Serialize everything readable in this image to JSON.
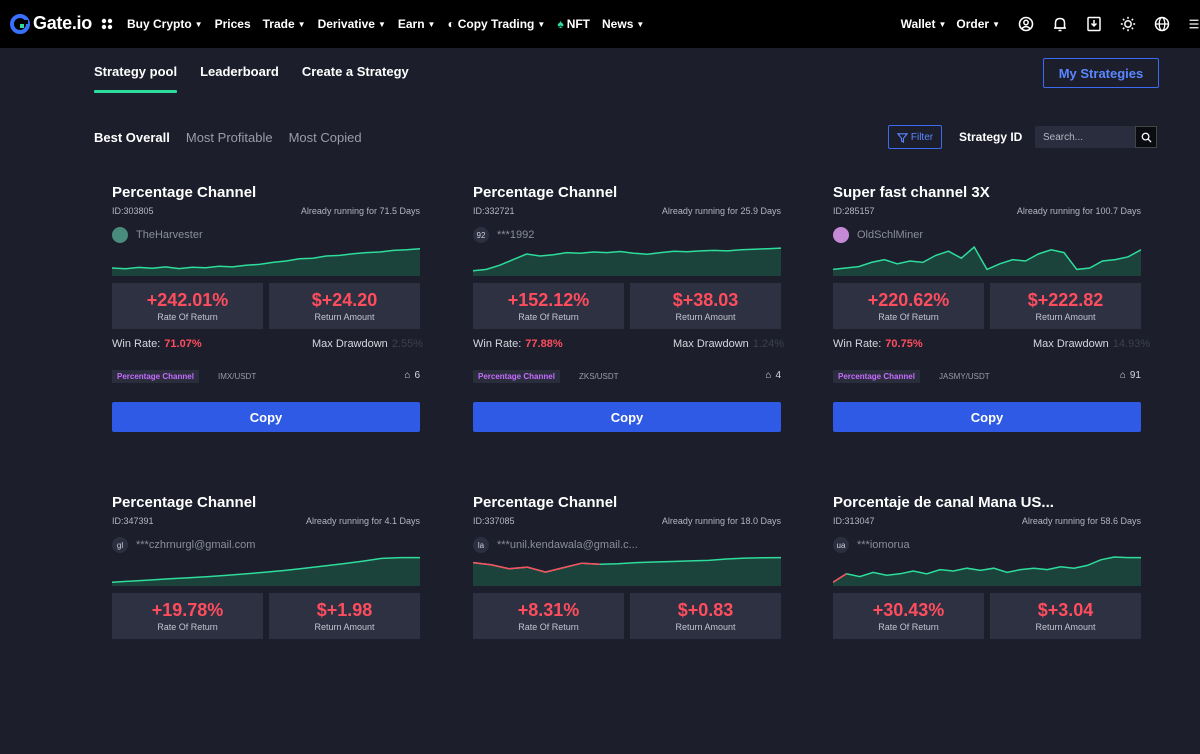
{
  "brand": {
    "name": "Gate.io"
  },
  "nav": {
    "items": [
      "Buy Crypto",
      "Prices",
      "Trade",
      "Derivative",
      "Earn",
      "Copy Trading",
      "NFT",
      "News"
    ],
    "wallet": "Wallet",
    "order": "Order"
  },
  "subnav": {
    "tabs": [
      "Strategy pool",
      "Leaderboard",
      "Create a Strategy"
    ],
    "my_strategies": "My Strategies"
  },
  "sort": {
    "tabs": [
      "Best Overall",
      "Most Profitable",
      "Most Copied"
    ]
  },
  "filter": {
    "label": "Filter",
    "strategy_id_label": "Strategy ID",
    "search_placeholder": "Search..."
  },
  "labels": {
    "rate": "Rate Of Return",
    "amount": "Return Amount",
    "win_rate": "Win Rate:",
    "max_dd": "Max Drawdown",
    "copy": "Copy"
  },
  "colors": {
    "accent": "#2f5ae5",
    "positive_line": "#2edc9b",
    "negative": "#ff4d5e",
    "tag": "#c56bff"
  },
  "cards": [
    {
      "title": "Percentage Channel",
      "id": "ID:303805",
      "running": "Already running for 71.5 Days",
      "user": "TheHarvester",
      "avatar": "",
      "rate": "+242.01%",
      "amount": "$+24.20",
      "win_rate": "71.07%",
      "max_dd": "2.55%",
      "tag": "Percentage Channel",
      "pair": "IMX/USDT",
      "copiers": "6",
      "chart": [
        0.25,
        0.22,
        0.27,
        0.24,
        0.29,
        0.23,
        0.28,
        0.26,
        0.31,
        0.29,
        0.35,
        0.38,
        0.45,
        0.5,
        0.58,
        0.6,
        0.68,
        0.7,
        0.76,
        0.8,
        0.82,
        0.88,
        0.9,
        0.94
      ]
    },
    {
      "title": "Percentage Channel",
      "id": "ID:332721",
      "running": "Already running for 25.9 Days",
      "user": "***1992",
      "avatar": "92",
      "rate": "+152.12%",
      "amount": "$+38.03",
      "win_rate": "77.88%",
      "max_dd": "1.24%",
      "tag": "Percentage Channel",
      "pair": "ZKS/USDT",
      "copiers": "4",
      "chart": [
        0.15,
        0.2,
        0.35,
        0.55,
        0.75,
        0.68,
        0.72,
        0.8,
        0.78,
        0.82,
        0.8,
        0.84,
        0.78,
        0.74,
        0.8,
        0.85,
        0.83,
        0.86,
        0.88,
        0.86,
        0.9,
        0.92,
        0.94,
        0.96
      ]
    },
    {
      "title": "Super fast channel 3X",
      "id": "ID:285157",
      "running": "Already running for 100.7 Days",
      "user": "OldSchlMiner",
      "avatar": "",
      "rate": "+220.62%",
      "amount": "$+222.82",
      "win_rate": "70.75%",
      "max_dd": "14.93%",
      "tag": "Percentage Channel",
      "pair": "JASMY/USDT",
      "copiers": "91",
      "chart": [
        0.2,
        0.25,
        0.3,
        0.45,
        0.55,
        0.4,
        0.5,
        0.45,
        0.7,
        0.85,
        0.6,
        1.0,
        0.2,
        0.4,
        0.55,
        0.5,
        0.75,
        0.9,
        0.8,
        0.2,
        0.25,
        0.5,
        0.55,
        0.65,
        0.9
      ]
    },
    {
      "title": "Percentage Channel",
      "id": "ID:347391",
      "running": "Already running for 4.1 Days",
      "user": "***czhrnurgl@gmail.com",
      "avatar": "gl",
      "rate": "+19.78%",
      "amount": "$+1.98",
      "win_rate": "",
      "max_dd": "",
      "tag": "",
      "pair": "",
      "copiers": "",
      "chart": [
        0.1,
        0.14,
        0.18,
        0.22,
        0.26,
        0.3,
        0.35,
        0.4,
        0.46,
        0.52,
        0.6,
        0.68,
        0.76,
        0.85,
        0.95,
        0.98,
        0.98
      ]
    },
    {
      "title": "Percentage Channel",
      "id": "ID:337085",
      "running": "Already running for 18.0 Days",
      "user": "***unil.kendawala@gmail.c...",
      "avatar": "la",
      "rate": "+8.31%",
      "amount": "$+0.83",
      "win_rate": "",
      "max_dd": "",
      "tag": "",
      "pair": "",
      "copiers": "",
      "chart": [
        0.8,
        0.72,
        0.58,
        0.64,
        0.46,
        0.62,
        0.78,
        0.74,
        0.76,
        0.8,
        0.82,
        0.84,
        0.86,
        0.88,
        0.93,
        0.96,
        0.97,
        0.98
      ]
    },
    {
      "title": "Porcentaje de canal Mana US...",
      "id": "ID:313047",
      "running": "Already running for 58.6 Days",
      "user": "***iomorua",
      "avatar": "ua",
      "rate": "+30.43%",
      "amount": "$+3.04",
      "win_rate": "",
      "max_dd": "",
      "tag": "",
      "pair": "",
      "copiers": "",
      "chart": [
        0.1,
        0.4,
        0.3,
        0.45,
        0.35,
        0.4,
        0.5,
        0.4,
        0.55,
        0.5,
        0.6,
        0.52,
        0.6,
        0.45,
        0.55,
        0.6,
        0.55,
        0.65,
        0.6,
        0.7,
        0.9,
        1.0,
        0.98,
        0.98
      ]
    }
  ]
}
